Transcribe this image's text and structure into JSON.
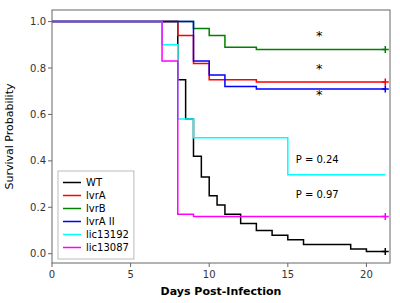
{
  "chart_data": {
    "type": "line",
    "title": "",
    "xlabel": "Days Post-Infection",
    "ylabel": "Survival Probability",
    "xlim": [
      0,
      21.5
    ],
    "ylim": [
      -0.04,
      1.05
    ],
    "xticks": [
      0,
      5,
      10,
      15,
      20
    ],
    "yticks": [
      {
        "value": 0.0,
        "label": "0.0"
      },
      0.2,
      0.4,
      0.6,
      0.8,
      {
        "value": 1.0,
        "label": "1.0"
      }
    ],
    "grid": false,
    "legend": "lower left",
    "series": [
      {
        "name": "WT",
        "color": "black",
        "marker": "plus",
        "x": [
          0,
          8,
          8,
          8.5,
          8.5,
          9,
          9,
          9.5,
          9.5,
          10,
          10,
          10.5,
          10.5,
          11,
          11,
          12,
          12,
          13,
          13,
          14,
          14,
          15,
          15,
          16,
          16,
          19,
          19,
          20,
          20,
          21.2
        ],
        "values": [
          1.0,
          1.0,
          0.75,
          0.75,
          0.58,
          0.58,
          0.42,
          0.42,
          0.33,
          0.33,
          0.25,
          0.25,
          0.21,
          0.21,
          0.17,
          0.17,
          0.13,
          0.13,
          0.1,
          0.1,
          0.08,
          0.08,
          0.06,
          0.06,
          0.04,
          0.04,
          0.02,
          0.02,
          0.01,
          0.01
        ]
      },
      {
        "name": "lvrA",
        "color": "red",
        "marker": "plus",
        "x": [
          0,
          8,
          8,
          9,
          9,
          10,
          10,
          13,
          13,
          21.2
        ],
        "values": [
          1.0,
          1.0,
          0.94,
          0.94,
          0.82,
          0.82,
          0.75,
          0.75,
          0.74,
          0.74
        ]
      },
      {
        "name": "lvrB",
        "color": "green",
        "marker": "plus",
        "x": [
          0,
          9,
          9,
          10,
          10,
          11,
          11,
          13,
          13,
          21.2
        ],
        "values": [
          1.0,
          1.0,
          0.97,
          0.97,
          0.94,
          0.94,
          0.89,
          0.89,
          0.88,
          0.88
        ]
      },
      {
        "name": "lvrA II",
        "color": "blue",
        "marker": "plus",
        "x": [
          0,
          9,
          9,
          10,
          10,
          11,
          11,
          13,
          13,
          21.2
        ],
        "values": [
          1.0,
          1.0,
          0.83,
          0.83,
          0.77,
          0.77,
          0.72,
          0.72,
          0.71,
          0.71
        ]
      },
      {
        "name": "lic13192",
        "color": "cyan",
        "x": [
          0,
          7,
          7,
          8,
          8,
          9,
          9,
          15,
          15,
          21.2
        ],
        "values": [
          1.0,
          1.0,
          0.9,
          0.9,
          0.58,
          0.58,
          0.5,
          0.5,
          0.34,
          0.34
        ]
      },
      {
        "name": "lic13087",
        "color": "magenta",
        "marker": "plus",
        "x": [
          0,
          7,
          7,
          8,
          8,
          9,
          9,
          21.2
        ],
        "values": [
          1.0,
          1.0,
          0.83,
          0.83,
          0.17,
          0.17,
          0.16,
          0.16
        ]
      }
    ],
    "annotations": [
      {
        "x": 16.8,
        "y": 0.935,
        "text": "*"
      },
      {
        "x": 16.8,
        "y": 0.795,
        "text": "*"
      },
      {
        "x": 16.8,
        "y": 0.68,
        "text": "*"
      },
      {
        "x": 15.5,
        "y": 0.405,
        "text": "P = 0.24"
      },
      {
        "x": 15.5,
        "y": 0.255,
        "text": "P = 0.97"
      }
    ]
  }
}
